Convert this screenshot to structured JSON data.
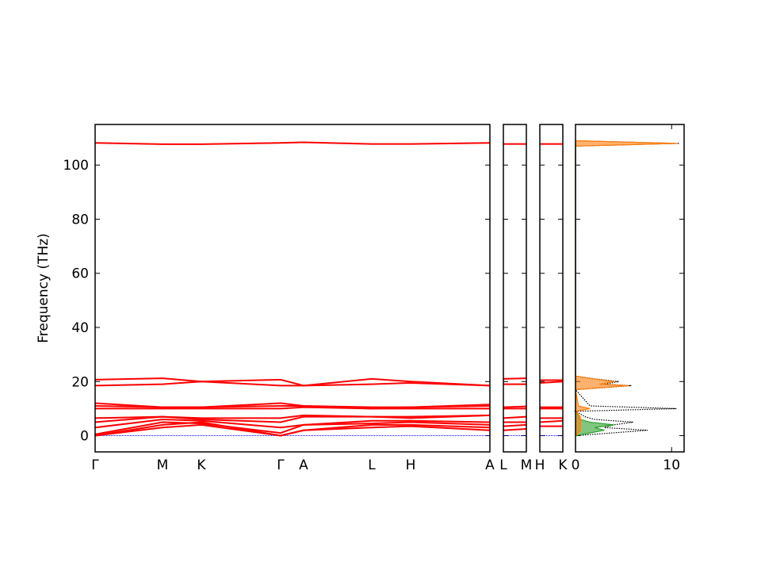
{
  "chart_data": [
    {
      "type": "line",
      "y_label": "Frequency (THz)",
      "x": [
        0,
        85,
        134,
        234,
        263,
        349,
        398,
        498
      ],
      "xlim": [
        0,
        498
      ],
      "xticks": [
        {
          "value": 0,
          "label": "Γ"
        },
        {
          "value": 85,
          "label": "M"
        },
        {
          "value": 134,
          "label": "K"
        },
        {
          "value": 234,
          "label": "Γ"
        },
        {
          "value": 263,
          "label": "A"
        },
        {
          "value": 349,
          "label": "L"
        },
        {
          "value": 398,
          "label": "H"
        },
        {
          "value": 498,
          "label": "A"
        }
      ],
      "ylim": [
        -6,
        115
      ],
      "yticks": [
        0,
        20,
        40,
        60,
        80,
        100
      ],
      "series": [
        {
          "color": "#ff0000",
          "values": [
            0,
            3,
            4,
            0,
            2,
            3,
            3.5,
            2
          ]
        },
        {
          "color": "#ff0000",
          "values": [
            0,
            4,
            5,
            0,
            2,
            4,
            4,
            3
          ]
        },
        {
          "color": "#ff0000",
          "values": [
            0.5,
            5,
            4.5,
            1,
            4,
            4.5,
            5,
            4
          ]
        },
        {
          "color": "#ff0000",
          "values": [
            3,
            6,
            5.5,
            3,
            4,
            5.5,
            5.5,
            5
          ]
        },
        {
          "color": "#ff0000",
          "values": [
            5,
            7,
            6,
            5,
            7,
            7,
            6.5,
            7.5
          ]
        },
        {
          "color": "#ff0000",
          "values": [
            6.5,
            7,
            6.5,
            6.5,
            7.5,
            7,
            7,
            7.5
          ]
        },
        {
          "color": "#ff0000",
          "values": [
            10,
            10,
            10,
            10,
            10.5,
            10,
            10,
            10
          ]
        },
        {
          "color": "#ff0000",
          "values": [
            11,
            10.5,
            10.5,
            11,
            11,
            10.5,
            10.5,
            11
          ]
        },
        {
          "color": "#ff0000",
          "values": [
            12,
            10.5,
            10.5,
            12,
            11,
            10,
            10.5,
            11.5
          ]
        },
        {
          "color": "#ff0000",
          "values": [
            18.5,
            19,
            20,
            18.5,
            18.5,
            19,
            19.5,
            18.5
          ]
        },
        {
          "color": "#ff0000",
          "values": [
            20.7,
            21.2,
            20,
            20.7,
            18.5,
            21,
            20,
            18.5
          ]
        },
        {
          "color": "#ff0000",
          "values": [
            108.2,
            107.7,
            107.7,
            108.2,
            108.4,
            107.8,
            107.8,
            108.2
          ]
        }
      ]
    },
    {
      "type": "line",
      "x": [
        0,
        29
      ],
      "xlim": [
        0,
        29
      ],
      "xticks": [
        {
          "value": 0,
          "label": "L"
        },
        {
          "value": 29,
          "label": "M"
        }
      ],
      "ylim": [
        -6,
        115
      ],
      "yticks": [
        0,
        20,
        40,
        60,
        80,
        100
      ],
      "series": [
        {
          "color": "#ff0000",
          "values": [
            2,
            2.5
          ]
        },
        {
          "color": "#ff0000",
          "values": [
            3.5,
            4
          ]
        },
        {
          "color": "#ff0000",
          "values": [
            5,
            5
          ]
        },
        {
          "color": "#ff0000",
          "values": [
            6.5,
            7
          ]
        },
        {
          "color": "#ff0000",
          "values": [
            10,
            10
          ]
        },
        {
          "color": "#ff0000",
          "values": [
            10.5,
            10.8
          ]
        },
        {
          "color": "#ff0000",
          "values": [
            19,
            19
          ]
        },
        {
          "color": "#ff0000",
          "values": [
            21,
            21.2
          ]
        },
        {
          "color": "#ff0000",
          "values": [
            107.8,
            107.8
          ]
        }
      ]
    },
    {
      "type": "line",
      "x": [
        0,
        29
      ],
      "xlim": [
        0,
        29
      ],
      "xticks": [
        {
          "value": 0,
          "label": "H"
        },
        {
          "value": 29,
          "label": "K"
        }
      ],
      "ylim": [
        -6,
        115
      ],
      "yticks": [
        0,
        20,
        40,
        60,
        80,
        100
      ],
      "series": [
        {
          "color": "#ff0000",
          "values": [
            3.5,
            3.5
          ]
        },
        {
          "color": "#ff0000",
          "values": [
            5,
            5.5
          ]
        },
        {
          "color": "#ff0000",
          "values": [
            6.5,
            6.5
          ]
        },
        {
          "color": "#ff0000",
          "values": [
            10,
            10
          ]
        },
        {
          "color": "#ff0000",
          "values": [
            10.5,
            10.5
          ]
        },
        {
          "color": "#ff0000",
          "values": [
            19.5,
            20
          ]
        },
        {
          "color": "#ff0000",
          "values": [
            20.5,
            20.5
          ]
        },
        {
          "color": "#ff0000",
          "values": [
            107.8,
            107.8
          ]
        }
      ]
    },
    {
      "type": "dos",
      "xlim": [
        0,
        11.3
      ],
      "xticks": [
        0,
        10
      ],
      "ylim": [
        -6,
        115
      ],
      "yticks": [
        0,
        20,
        40,
        60,
        80,
        100
      ],
      "y": [
        0,
        2,
        3,
        4,
        5,
        6,
        7,
        9,
        10,
        11,
        17,
        18.5,
        19,
        20,
        21,
        22,
        107,
        108,
        109
      ],
      "series": [
        {
          "color": "#000000",
          "values": [
            0,
            7.5,
            3,
            4,
            6,
            2,
            1,
            0,
            10.5,
            1.5,
            0,
            5.8,
            3,
            4.5,
            2,
            0,
            0,
            10.8,
            0
          ]
        },
        {
          "color": "#2ca02c",
          "values": [
            0,
            3,
            2,
            4,
            1.5,
            0.5,
            0.3,
            0,
            0,
            0,
            0,
            0,
            0,
            0,
            0,
            0,
            0,
            0,
            0
          ]
        },
        {
          "color": "#ff7f0e",
          "values": [
            0,
            0.5,
            0.5,
            0.5,
            0.5,
            0.5,
            0.5,
            0,
            1.5,
            0.3,
            0,
            5.5,
            2.5,
            4,
            1.8,
            0,
            0,
            10.5,
            0
          ]
        }
      ]
    }
  ]
}
